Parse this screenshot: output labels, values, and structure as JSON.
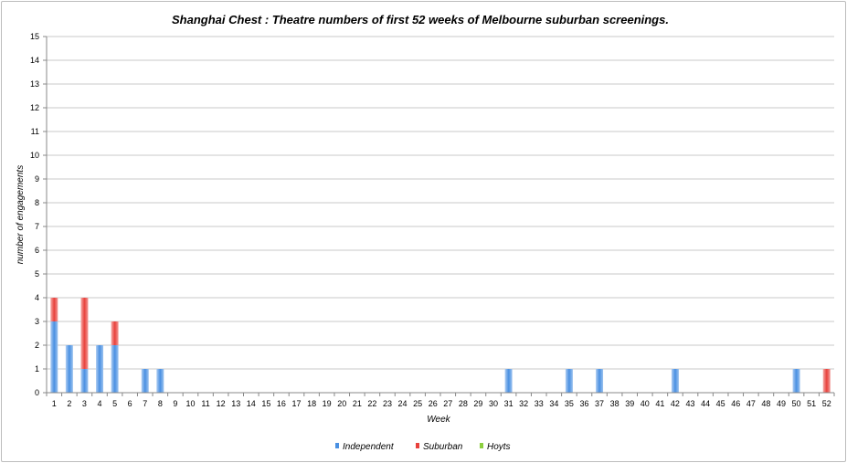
{
  "chart_data": {
    "type": "bar",
    "stacked": true,
    "title": "Shanghai Chest : Theatre numbers of first 52 weeks of Melbourne suburban screenings.",
    "xlabel": "Week",
    "ylabel": "number of engagements",
    "ylim": [
      0,
      15
    ],
    "yticks": [
      0,
      1,
      2,
      3,
      4,
      5,
      6,
      7,
      8,
      9,
      10,
      11,
      12,
      13,
      14,
      15
    ],
    "grid": true,
    "legend_position": "bottom",
    "categories": [
      "1",
      "2",
      "3",
      "4",
      "5",
      "6",
      "7",
      "8",
      "9",
      "10",
      "11",
      "12",
      "13",
      "14",
      "15",
      "16",
      "17",
      "18",
      "19",
      "20",
      "21",
      "22",
      "23",
      "24",
      "25",
      "26",
      "27",
      "28",
      "29",
      "30",
      "31",
      "32",
      "33",
      "34",
      "35",
      "36",
      "37",
      "38",
      "39",
      "40",
      "41",
      "42",
      "43",
      "44",
      "45",
      "46",
      "47",
      "48",
      "49",
      "50",
      "51",
      "52"
    ],
    "series": [
      {
        "name": "Independent",
        "color": "#4a90e2",
        "values": [
          3,
          2,
          1,
          2,
          2,
          0,
          1,
          1,
          0,
          0,
          0,
          0,
          0,
          0,
          0,
          0,
          0,
          0,
          0,
          0,
          0,
          0,
          0,
          0,
          0,
          0,
          0,
          0,
          0,
          0,
          1,
          0,
          0,
          0,
          1,
          0,
          1,
          0,
          0,
          0,
          0,
          1,
          0,
          0,
          0,
          0,
          0,
          0,
          0,
          1,
          0,
          0
        ]
      },
      {
        "name": "Suburban",
        "color": "#e8413c",
        "values": [
          1,
          0,
          3,
          0,
          1,
          0,
          0,
          0,
          0,
          0,
          0,
          0,
          0,
          0,
          0,
          0,
          0,
          0,
          0,
          0,
          0,
          0,
          0,
          0,
          0,
          0,
          0,
          0,
          0,
          0,
          0,
          0,
          0,
          0,
          0,
          0,
          0,
          0,
          0,
          0,
          0,
          0,
          0,
          0,
          0,
          0,
          0,
          0,
          0,
          0,
          0,
          1
        ]
      },
      {
        "name": "Hoyts",
        "color": "#8ccf3e",
        "values": [
          0,
          0,
          0,
          0,
          0,
          0,
          0,
          0,
          0,
          0,
          0,
          0,
          0,
          0,
          0,
          0,
          0,
          0,
          0,
          0,
          0,
          0,
          0,
          0,
          0,
          0,
          0,
          0,
          0,
          0,
          0,
          0,
          0,
          0,
          0,
          0,
          0,
          0,
          0,
          0,
          0,
          0,
          0,
          0,
          0,
          0,
          0,
          0,
          0,
          0,
          0,
          0
        ]
      }
    ]
  }
}
